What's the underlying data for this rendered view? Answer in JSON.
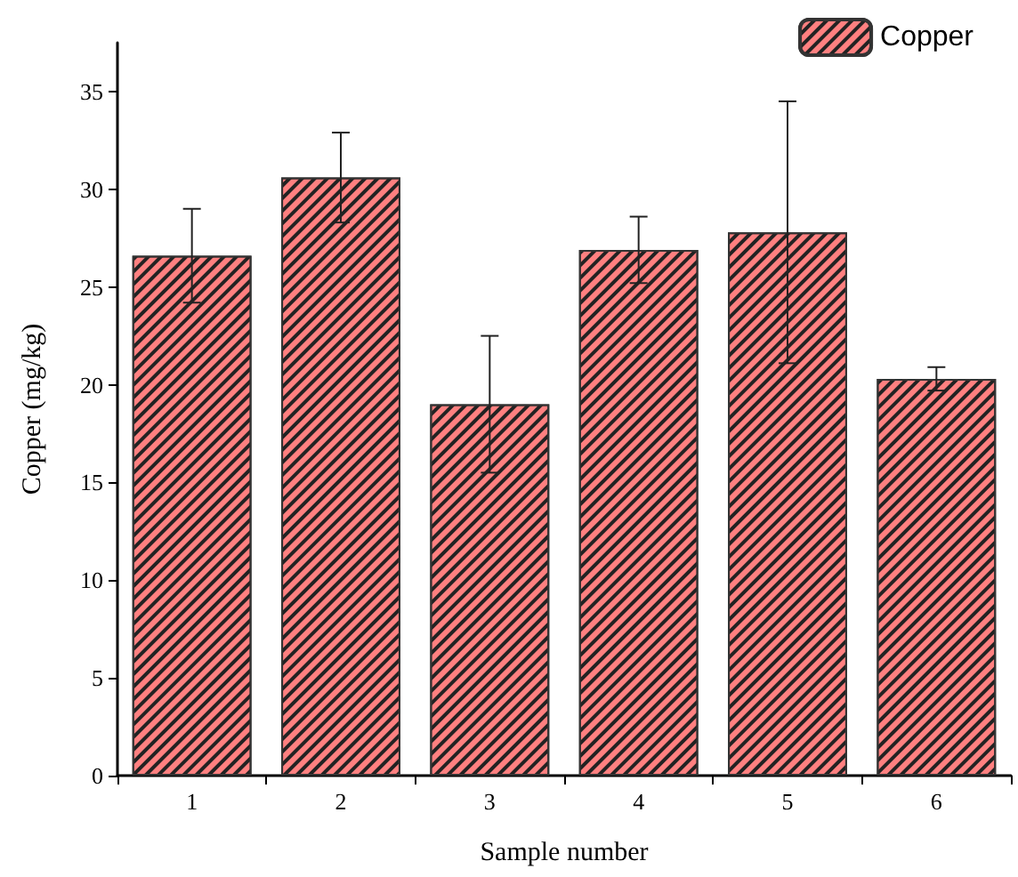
{
  "chart_data": {
    "type": "bar",
    "xlabel": "Sample number",
    "ylabel": "Copper (mg/kg)",
    "categories": [
      "1",
      "2",
      "3",
      "4",
      "5",
      "6"
    ],
    "series": [
      {
        "name": "Copper",
        "color": "#ff8080",
        "values": [
          26.6,
          30.6,
          19.0,
          26.9,
          27.8,
          20.3
        ],
        "errors": [
          2.4,
          2.3,
          3.5,
          1.7,
          6.7,
          0.6
        ]
      }
    ],
    "ylim": [
      0,
      37.5
    ],
    "yticks": [
      0,
      5,
      10,
      15,
      20,
      25,
      30,
      35
    ],
    "grid": false,
    "legend": "top right"
  }
}
